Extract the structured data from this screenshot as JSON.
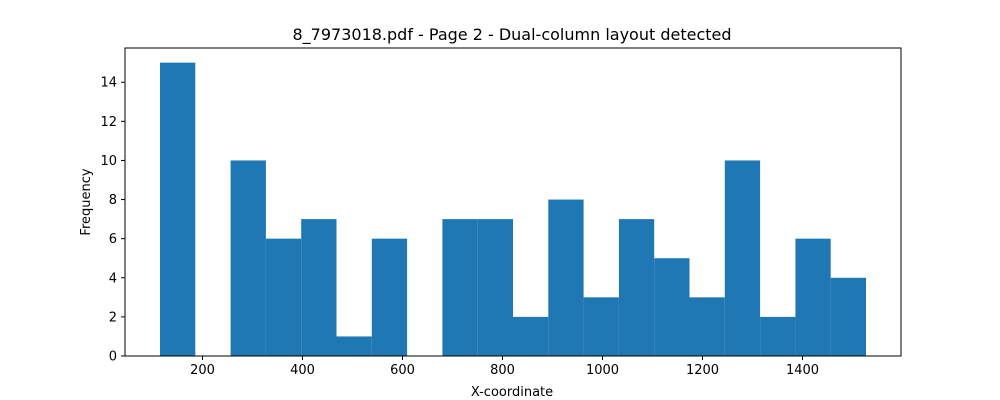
{
  "chart_data": {
    "type": "bar",
    "title": "8_7973018.pdf - Page 2 - Dual-column layout detected",
    "xlabel": "X-coordinate",
    "ylabel": "Frequency",
    "xlim": [
      45,
      1597
    ],
    "ylim": [
      0,
      15.75
    ],
    "xticks": [
      200,
      400,
      600,
      800,
      1000,
      1200,
      1400
    ],
    "yticks": [
      0,
      2,
      4,
      6,
      8,
      10,
      12,
      14
    ],
    "bin_start": 115,
    "bin_width": 70.6,
    "bins": [
      {
        "x": 115.0,
        "value": 15
      },
      {
        "x": 185.6,
        "value": 0
      },
      {
        "x": 256.2,
        "value": 10
      },
      {
        "x": 326.8,
        "value": 6
      },
      {
        "x": 397.4,
        "value": 7
      },
      {
        "x": 468.0,
        "value": 1
      },
      {
        "x": 538.6,
        "value": 6
      },
      {
        "x": 609.2,
        "value": 0
      },
      {
        "x": 679.8,
        "value": 7
      },
      {
        "x": 750.4,
        "value": 7
      },
      {
        "x": 821.0,
        "value": 2
      },
      {
        "x": 891.6,
        "value": 8
      },
      {
        "x": 962.2,
        "value": 3
      },
      {
        "x": 1032.8,
        "value": 7
      },
      {
        "x": 1103.4,
        "value": 5
      },
      {
        "x": 1174.0,
        "value": 3
      },
      {
        "x": 1244.6,
        "value": 10
      },
      {
        "x": 1315.2,
        "value": 2
      },
      {
        "x": 1385.8,
        "value": 6
      },
      {
        "x": 1456.4,
        "value": 4
      }
    ],
    "bar_color": "#1f77b4",
    "grid": false
  }
}
